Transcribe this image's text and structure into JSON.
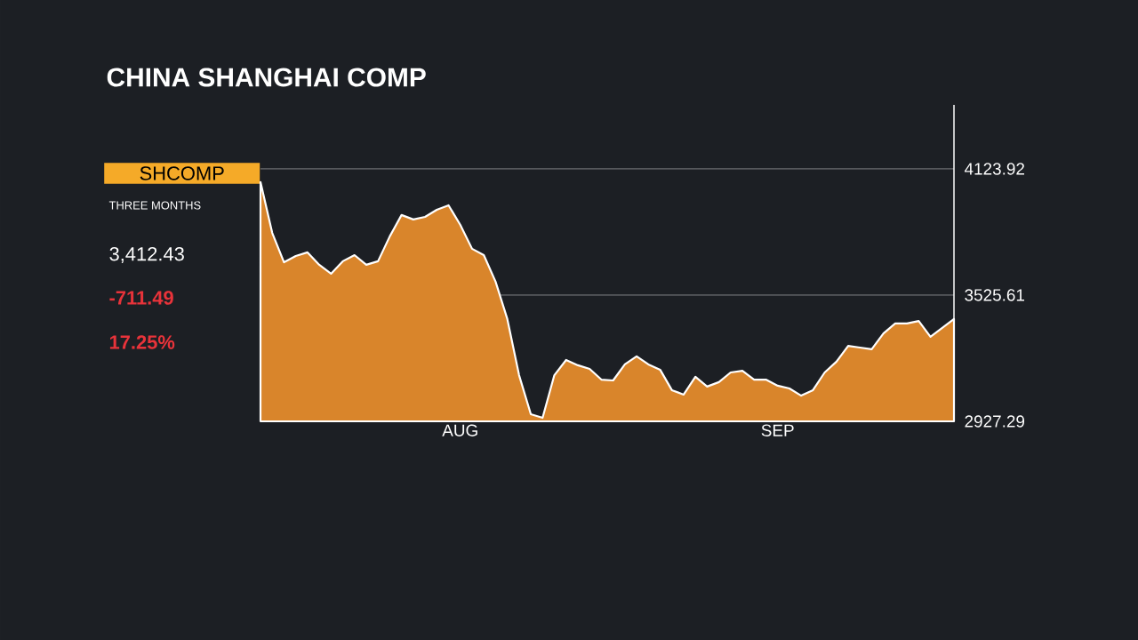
{
  "chart_data": {
    "type": "area",
    "title": "CHINA SHANGHAI COMP",
    "annotations": [
      "SHCOMP",
      "THREE MONTHS",
      "3,412.43",
      "-711.49",
      "17.25%"
    ],
    "categories": [
      null,
      null,
      null,
      null,
      null,
      null,
      null,
      null,
      null,
      null,
      null,
      null,
      null,
      null,
      null,
      null,
      null,
      "AUG",
      null,
      null,
      null,
      null,
      null,
      null,
      null,
      null,
      null,
      null,
      null,
      null,
      null,
      null,
      null,
      null,
      null,
      null,
      null,
      null,
      null,
      null,
      null,
      null,
      null,
      null,
      "SEP",
      null,
      null,
      null,
      null,
      null,
      null,
      null,
      null,
      null,
      null,
      null,
      null,
      null,
      null,
      null
    ],
    "values": [
      4061,
      3820,
      3681,
      3711,
      3728,
      3669,
      3627,
      3686,
      3715,
      3669,
      3686,
      3804,
      3905,
      3884,
      3896,
      3930,
      3951,
      3858,
      3745,
      3715,
      3589,
      3412,
      3146,
      2961,
      2944,
      3146,
      3218,
      3193,
      3176,
      3125,
      3121,
      3197,
      3235,
      3197,
      3172,
      3075,
      3054,
      3138,
      3092,
      3113,
      3159,
      3167,
      3125,
      3125,
      3096,
      3083,
      3049,
      3075,
      3159,
      3210,
      3285,
      3277,
      3269,
      3344,
      3391,
      3391,
      3403,
      3328,
      3370,
      3412.43
    ],
    "color": "#d9852b",
    "ylim": [
      2927.29,
      4427
    ],
    "yticks": [
      2927.29,
      3525.61,
      4123.92
    ],
    "grid": "y"
  }
}
